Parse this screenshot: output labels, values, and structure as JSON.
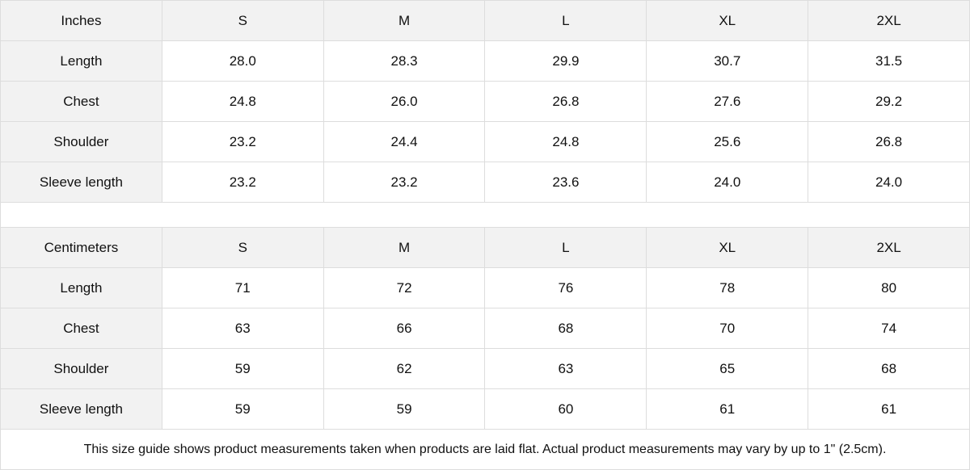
{
  "tables": [
    {
      "unit": "Inches",
      "sizes": [
        "S",
        "M",
        "L",
        "XL",
        "2XL"
      ],
      "rows": [
        {
          "label": "Length",
          "values": [
            "28.0",
            "28.3",
            "29.9",
            "30.7",
            "31.5"
          ]
        },
        {
          "label": "Chest",
          "values": [
            "24.8",
            "26.0",
            "26.8",
            "27.6",
            "29.2"
          ]
        },
        {
          "label": "Shoulder",
          "values": [
            "23.2",
            "24.4",
            "24.8",
            "25.6",
            "26.8"
          ]
        },
        {
          "label": "Sleeve length",
          "values": [
            "23.2",
            "23.2",
            "23.6",
            "24.0",
            "24.0"
          ]
        }
      ]
    },
    {
      "unit": "Centimeters",
      "sizes": [
        "S",
        "M",
        "L",
        "XL",
        "2XL"
      ],
      "rows": [
        {
          "label": "Length",
          "values": [
            "71",
            "72",
            "76",
            "78",
            "80"
          ]
        },
        {
          "label": "Chest",
          "values": [
            "63",
            "66",
            "68",
            "70",
            "74"
          ]
        },
        {
          "label": "Shoulder",
          "values": [
            "59",
            "62",
            "63",
            "65",
            "68"
          ]
        },
        {
          "label": "Sleeve length",
          "values": [
            "59",
            "59",
            "60",
            "61",
            "61"
          ]
        }
      ]
    }
  ],
  "note": "This size guide shows product measurements taken when products are laid flat.  Actual product measurements may vary by up to 1\" (2.5cm).",
  "colors": {
    "header_bg": "#f2f2f2",
    "border": "#dddddd",
    "text": "#111111"
  }
}
